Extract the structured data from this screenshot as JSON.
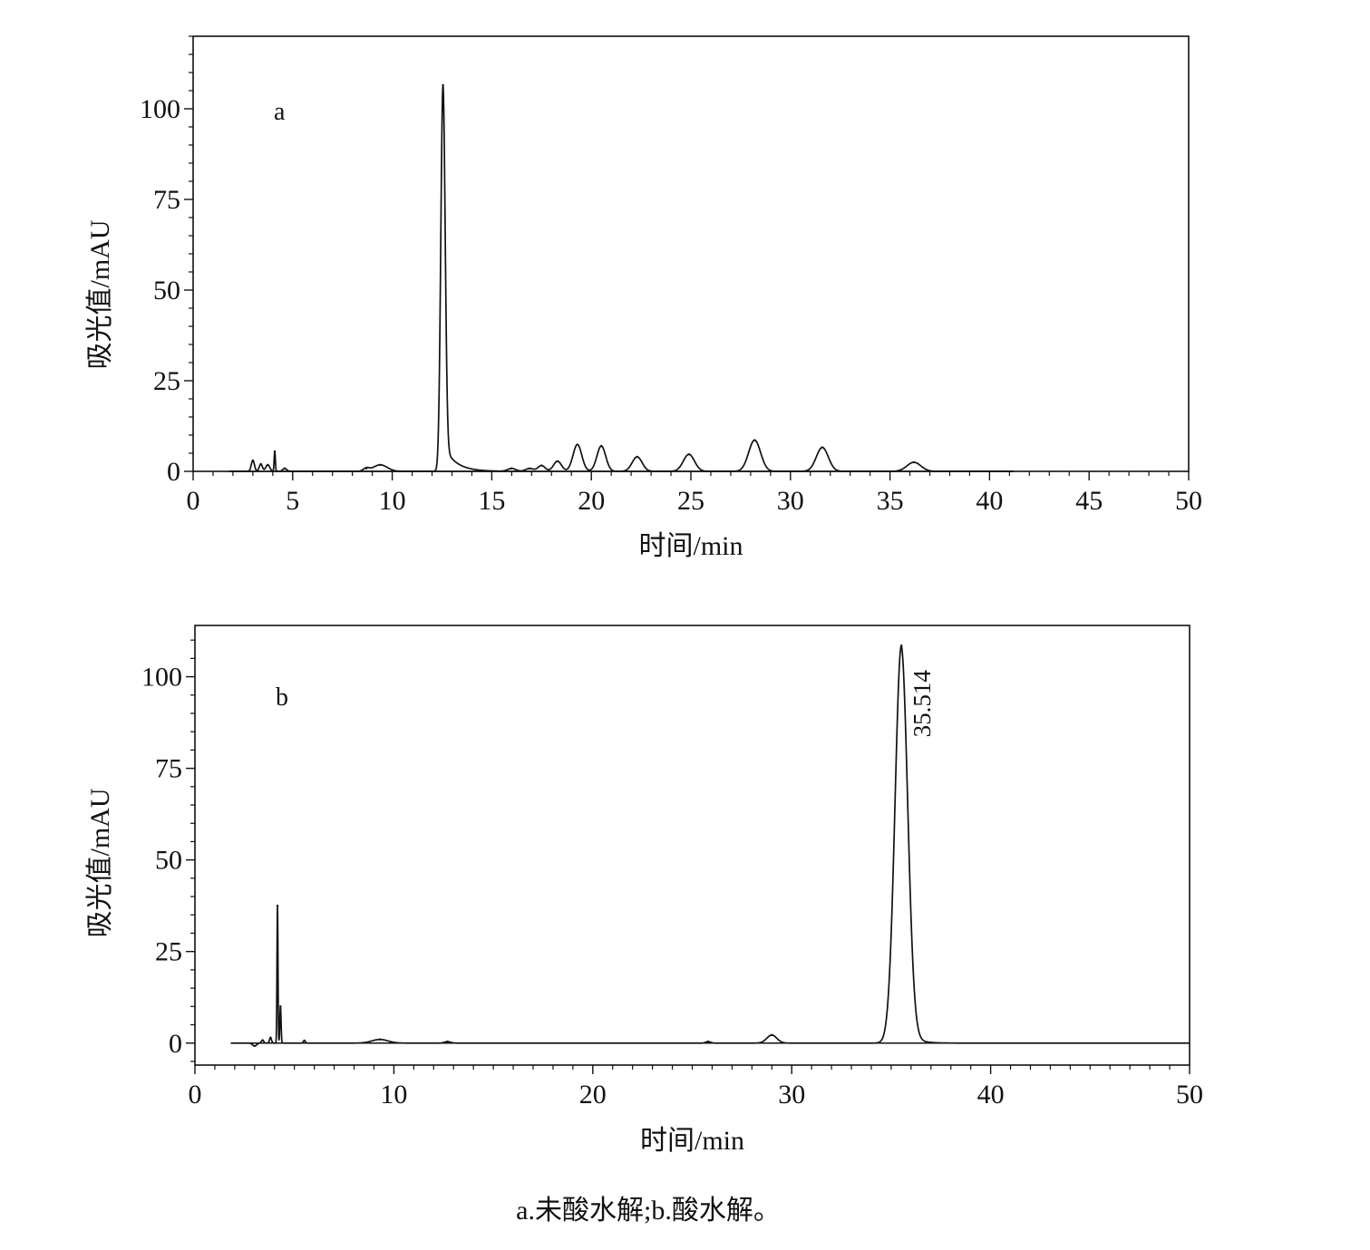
{
  "caption": "a.未酸水解;b.酸水解。",
  "chart_data": [
    {
      "type": "line",
      "panel_label": "a",
      "xlabel": "时间/min",
      "ylabel": "吸光值/mAU",
      "xlim": [
        0,
        50
      ],
      "ylim": [
        0,
        120
      ],
      "xticks": [
        0,
        5,
        10,
        15,
        20,
        25,
        30,
        35,
        40,
        45,
        50
      ],
      "yticks": [
        0,
        25,
        50,
        75,
        100
      ],
      "x_minor_step": 1,
      "y_minor_step": 5,
      "grid": false,
      "baseline_end": 41.2,
      "peaks": [
        {
          "rt": 3.0,
          "height": 3.0,
          "width": 0.08
        },
        {
          "rt": 3.4,
          "height": 2.0,
          "width": 0.08
        },
        {
          "rt": 3.75,
          "height": 1.8,
          "width": 0.1
        },
        {
          "rt": 4.1,
          "height": 5.5,
          "width": 0.03
        },
        {
          "rt": 4.6,
          "height": 0.8,
          "width": 0.1
        },
        {
          "rt": 8.7,
          "height": 0.8,
          "width": 0.15
        },
        {
          "rt": 9.4,
          "height": 1.8,
          "width": 0.35
        },
        {
          "rt": 12.55,
          "height": 106.5,
          "width": 0.11,
          "tail": 0.6
        },
        {
          "rt": 16.0,
          "height": 0.8,
          "width": 0.2
        },
        {
          "rt": 16.9,
          "height": 0.8,
          "width": 0.2
        },
        {
          "rt": 17.5,
          "height": 1.6,
          "width": 0.18
        },
        {
          "rt": 18.3,
          "height": 2.8,
          "width": 0.2
        },
        {
          "rt": 19.3,
          "height": 7.4,
          "width": 0.22
        },
        {
          "rt": 20.5,
          "height": 7.0,
          "width": 0.22
        },
        {
          "rt": 22.3,
          "height": 4.0,
          "width": 0.25
        },
        {
          "rt": 24.9,
          "height": 4.7,
          "width": 0.28
        },
        {
          "rt": 28.2,
          "height": 8.6,
          "width": 0.3
        },
        {
          "rt": 31.6,
          "height": 6.6,
          "width": 0.3
        },
        {
          "rt": 36.2,
          "height": 2.5,
          "width": 0.35
        }
      ],
      "annotations": []
    },
    {
      "type": "line",
      "panel_label": "b",
      "xlabel": "时间/min",
      "ylabel": "吸光值/mAU",
      "xlim": [
        0,
        50
      ],
      "ylim": [
        -6,
        114
      ],
      "xticks": [
        0,
        10,
        20,
        30,
        40,
        50
      ],
      "yticks": [
        0,
        25,
        50,
        75,
        100
      ],
      "x_minor_step": 1,
      "y_minor_step": 5,
      "grid": false,
      "baseline_end": 50,
      "peaks": [
        {
          "rt": 3.0,
          "height": -0.8,
          "width": 0.1
        },
        {
          "rt": 3.4,
          "height": 0.8,
          "width": 0.06
        },
        {
          "rt": 3.8,
          "height": 1.5,
          "width": 0.05
        },
        {
          "rt": 4.15,
          "height": 37.5,
          "width": 0.025
        },
        {
          "rt": 4.3,
          "height": 10.0,
          "width": 0.03
        },
        {
          "rt": 5.5,
          "height": 0.7,
          "width": 0.05
        },
        {
          "rt": 9.3,
          "height": 1.0,
          "width": 0.4
        },
        {
          "rt": 12.7,
          "height": 0.4,
          "width": 0.15
        },
        {
          "rt": 25.8,
          "height": 0.4,
          "width": 0.12
        },
        {
          "rt": 29.0,
          "height": 2.2,
          "width": 0.25
        },
        {
          "rt": 35.514,
          "height": 108.5,
          "width": 0.32,
          "tail": 0.4
        }
      ],
      "annotations": [
        {
          "x": 35.514,
          "y": 108.5,
          "text": "35.514"
        }
      ]
    }
  ]
}
